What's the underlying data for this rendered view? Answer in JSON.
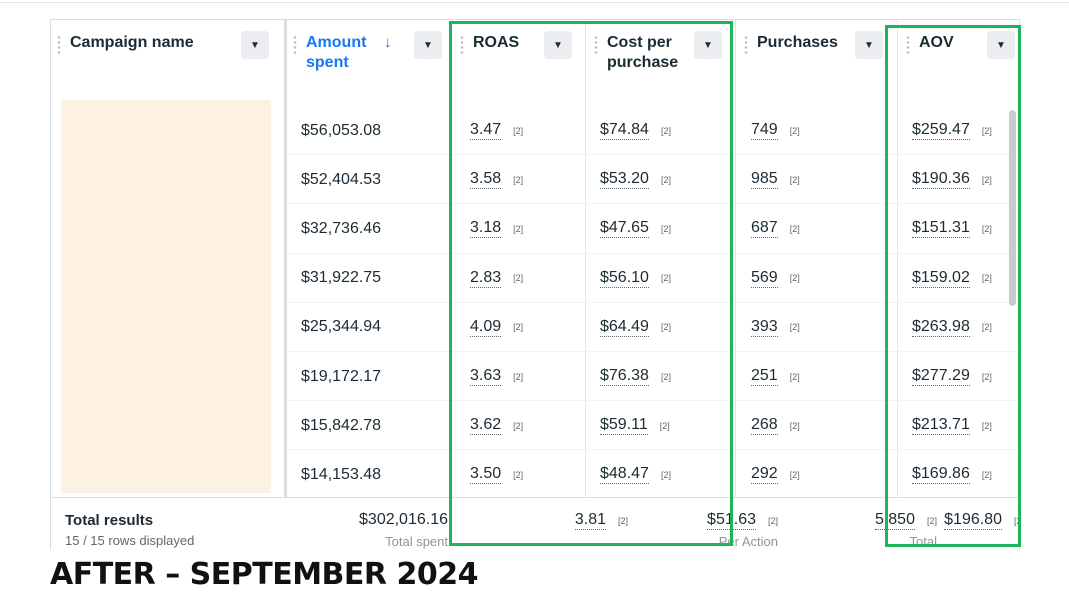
{
  "columns": [
    {
      "label": "Campaign name"
    },
    {
      "label": "Amount spent",
      "sorted": true
    },
    {
      "label": "ROAS"
    },
    {
      "label": "Cost per purchase"
    },
    {
      "label": "Purchases"
    },
    {
      "label": "AOV"
    }
  ],
  "ref_mark": "[2]",
  "rows": [
    {
      "spent": "$56,053.08",
      "roas": "3.47",
      "cpp": "$74.84",
      "purchases": "749",
      "aov": "$259.47"
    },
    {
      "spent": "$52,404.53",
      "roas": "3.58",
      "cpp": "$53.20",
      "purchases": "985",
      "aov": "$190.36"
    },
    {
      "spent": "$32,736.46",
      "roas": "3.18",
      "cpp": "$47.65",
      "purchases": "687",
      "aov": "$151.31"
    },
    {
      "spent": "$31,922.75",
      "roas": "2.83",
      "cpp": "$56.10",
      "purchases": "569",
      "aov": "$159.02"
    },
    {
      "spent": "$25,344.94",
      "roas": "4.09",
      "cpp": "$64.49",
      "purchases": "393",
      "aov": "$263.98"
    },
    {
      "spent": "$19,172.17",
      "roas": "3.63",
      "cpp": "$76.38",
      "purchases": "251",
      "aov": "$277.29"
    },
    {
      "spent": "$15,842.78",
      "roas": "3.62",
      "cpp": "$59.11",
      "purchases": "268",
      "aov": "$213.71"
    },
    {
      "spent": "$14,153.48",
      "roas": "3.50",
      "cpp": "$48.47",
      "purchases": "292",
      "aov": "$169.86"
    }
  ],
  "footer": {
    "title": "Total results",
    "subtitle": "15 / 15 rows displayed",
    "spent": "$302,016.16",
    "spent_caption": "Total spent",
    "roas": "3.81",
    "cpp": "$51.63",
    "cpp_caption": "Per Action",
    "purchases": "5,850",
    "purchases_caption": "Total",
    "aov": "$196.80"
  },
  "caption": "AFTER – SEPTEMBER 2024",
  "colors": {
    "highlight": "#1fb35a",
    "sorted_header": "#1877f2"
  },
  "icons": {
    "sort": "arrow-down-icon",
    "dropdown": "caret-down-icon",
    "grip": "drag-handle-icon"
  }
}
